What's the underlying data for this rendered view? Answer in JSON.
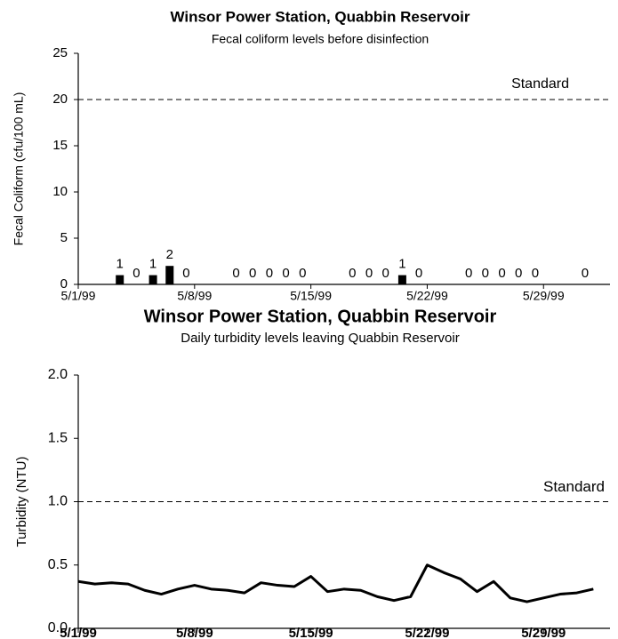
{
  "chart_data": [
    {
      "type": "bar",
      "title": "Winsor Power Station, Quabbin Reservoir",
      "subtitle": "Fecal coliform levels before disinfection",
      "y_label": "Fecal Coliform (cfu/100 mL)",
      "x": [
        "5/3/99",
        "5/4/99",
        "5/5/99",
        "5/6/99",
        "5/7/99",
        "5/10/99",
        "5/11/99",
        "5/12/99",
        "5/13/99",
        "5/14/99",
        "5/17/99",
        "5/18/99",
        "5/19/99",
        "5/20/99",
        "5/21/99",
        "5/24/99",
        "5/25/99",
        "5/26/99",
        "5/27/99",
        "5/28/99",
        "5/31/99"
      ],
      "values": [
        1,
        0,
        1,
        2,
        0,
        0,
        0,
        0,
        0,
        0,
        0,
        0,
        0,
        1,
        0,
        0,
        0,
        0,
        0,
        0,
        0
      ],
      "color": "#000000",
      "xlim": [
        "5/1/99",
        "6/2/99"
      ],
      "xticks": [
        "5/1/99",
        "5/8/99",
        "5/15/99",
        "5/22/99",
        "5/29/99"
      ],
      "ylim": [
        0,
        25
      ],
      "yticks": [
        0,
        5,
        10,
        15,
        20,
        25
      ],
      "reference_line": {
        "value": 20,
        "label": "Standard"
      }
    },
    {
      "type": "line",
      "title": "Winsor Power Station, Quabbin Reservoir",
      "subtitle": "Daily turbidity levels leaving Quabbin Reservoir",
      "y_label": "Turbidity (NTU)",
      "x": [
        "5/1/99",
        "5/2/99",
        "5/3/99",
        "5/4/99",
        "5/5/99",
        "5/6/99",
        "5/7/99",
        "5/8/99",
        "5/9/99",
        "5/10/99",
        "5/11/99",
        "5/12/99",
        "5/13/99",
        "5/14/99",
        "5/15/99",
        "5/16/99",
        "5/17/99",
        "5/18/99",
        "5/19/99",
        "5/20/99",
        "5/21/99",
        "5/22/99",
        "5/23/99",
        "5/24/99",
        "5/25/99",
        "5/26/99",
        "5/27/99",
        "5/28/99",
        "5/29/99",
        "5/30/99",
        "5/31/99",
        "6/1/99"
      ],
      "values": [
        0.37,
        0.35,
        0.36,
        0.35,
        0.3,
        0.27,
        0.31,
        0.34,
        0.31,
        0.3,
        0.28,
        0.36,
        0.34,
        0.33,
        0.41,
        0.29,
        0.31,
        0.3,
        0.25,
        0.22,
        0.25,
        0.5,
        0.44,
        0.39,
        0.29,
        0.37,
        0.24,
        0.21,
        0.24,
        0.27,
        0.28,
        0.31
      ],
      "color": "#000000",
      "xlim": [
        "5/1/99",
        "6/2/99"
      ],
      "xticks": [
        "5/1/99",
        "5/8/99",
        "5/15/99",
        "5/22/99",
        "5/29/99"
      ],
      "ylim": [
        0,
        2
      ],
      "yticks": [
        {
          "value": 0,
          "label": "0.0"
        },
        {
          "value": 0.5,
          "label": "0.5"
        },
        {
          "value": 1,
          "label": "1.0"
        },
        {
          "value": 1.5,
          "label": "1.5"
        },
        {
          "value": 2,
          "label": "2.0"
        }
      ],
      "reference_line": {
        "value": 1,
        "label": "Standard"
      }
    }
  ]
}
